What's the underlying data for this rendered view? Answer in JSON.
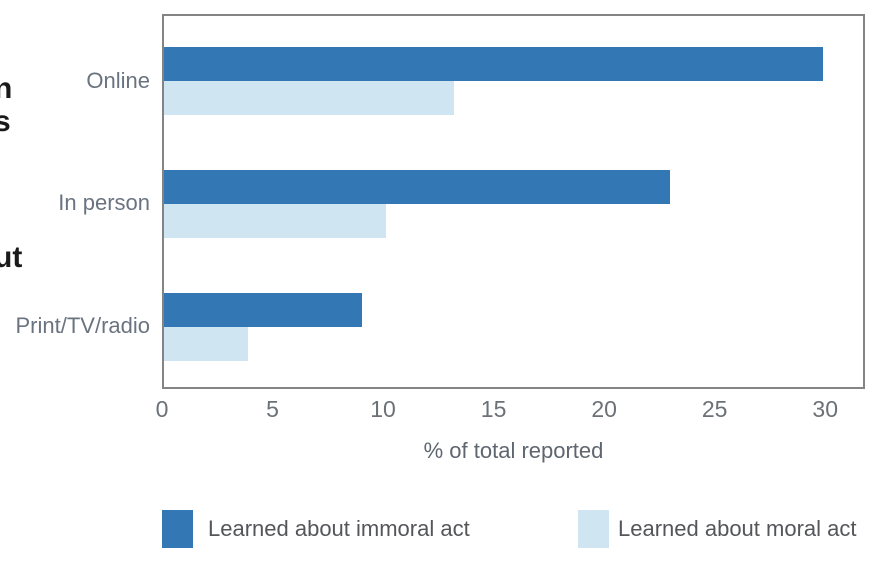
{
  "figure": {
    "cropped_text_fragments": [
      "n",
      "s",
      "ut"
    ]
  },
  "chart_data": {
    "type": "bar",
    "orientation": "horizontal",
    "title": "",
    "categories": [
      "Online",
      "In person",
      "Print/TV/radio"
    ],
    "series": [
      {
        "name": "Learned about immoral act",
        "values": [
          30,
          23,
          9
        ],
        "color": "#3377b5"
      },
      {
        "name": "Learned about moral act",
        "values": [
          13.2,
          10.1,
          3.8
        ],
        "color": "#cfe5f1"
      }
    ],
    "xlabel": "% of total reported",
    "x_ticks": [
      "0",
      "5",
      "10",
      "15",
      "20",
      "25",
      "30"
    ],
    "xlim": [
      0,
      31.8
    ],
    "grid": false,
    "legend_position": "bottom"
  },
  "colors": {
    "immoral_bar": "#3377b5",
    "moral_bar": "#cfe5f1",
    "plot_border": "#848484",
    "axis_text": "#6b7177",
    "category_label_text": "#6a7480",
    "legend_text": "#55565a",
    "fragment_text": "#1a1a1a",
    "background": "#ffffff"
  }
}
